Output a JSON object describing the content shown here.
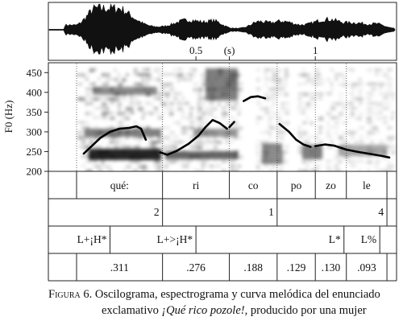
{
  "figure": {
    "oscillogram_ticks": [
      {
        "label": "0.5",
        "t": 0.5
      },
      {
        "label": "(s)",
        "t": 0.64
      },
      {
        "label": "1",
        "t": 1.0
      }
    ],
    "y_axis_label": "F0 (Hz)",
    "chart_data": {
      "type": "line",
      "ylabel": "F0 (Hz)",
      "yticks": [
        200,
        250,
        300,
        350,
        400,
        450
      ],
      "ylim": [
        200,
        475
      ],
      "xlim": [
        0,
        1.32
      ],
      "pitch_segments": [
        [
          [
            0.03,
            245
          ],
          [
            0.06,
            262
          ],
          [
            0.1,
            285
          ],
          [
            0.14,
            300
          ],
          [
            0.18,
            308
          ],
          [
            0.22,
            310
          ],
          [
            0.25,
            314
          ],
          [
            0.27,
            308
          ],
          [
            0.29,
            280
          ]
        ],
        [
          [
            0.35,
            248
          ],
          [
            0.38,
            242
          ],
          [
            0.42,
            252
          ],
          [
            0.47,
            270
          ],
          [
            0.51,
            290
          ],
          [
            0.54,
            312
          ],
          [
            0.57,
            330
          ],
          [
            0.6,
            322
          ],
          [
            0.63,
            308
          ]
        ],
        [
          [
            0.64,
            312
          ],
          [
            0.66,
            325
          ]
        ],
        [
          [
            0.7,
            378
          ],
          [
            0.73,
            388
          ],
          [
            0.76,
            390
          ],
          [
            0.79,
            385
          ]
        ],
        [
          [
            0.85,
            320
          ],
          [
            0.89,
            300
          ],
          [
            0.92,
            280
          ],
          [
            0.95,
            268
          ],
          [
            0.98,
            262
          ]
        ],
        [
          [
            1.0,
            264
          ],
          [
            1.04,
            268
          ],
          [
            1.08,
            265
          ],
          [
            1.13,
            255
          ],
          [
            1.18,
            249
          ],
          [
            1.23,
            244
          ],
          [
            1.28,
            239
          ],
          [
            1.31,
            235
          ]
        ]
      ]
    },
    "tiers": {
      "syllables": [
        {
          "label": "qué:",
          "start": 0.0,
          "end": 0.36
        },
        {
          "label": "ri",
          "start": 0.36,
          "end": 0.64
        },
        {
          "label": "co",
          "start": 0.64,
          "end": 0.84
        },
        {
          "label": "po",
          "start": 0.84,
          "end": 1.0
        },
        {
          "label": "zo",
          "start": 1.0,
          "end": 1.13
        },
        {
          "label": "le",
          "start": 1.13,
          "end": 1.3
        }
      ],
      "break_indices": [
        {
          "label": "2",
          "t": 0.36
        },
        {
          "label": "1",
          "t": 0.84
        },
        {
          "label": "4",
          "t": 1.3
        }
      ],
      "tones": [
        {
          "label": "L+¡H*",
          "t": 0.14
        },
        {
          "label": "L+>¡H*",
          "t": 0.5
        },
        {
          "label": "L*",
          "t": 1.12
        },
        {
          "label": "L%",
          "t": 1.27
        }
      ],
      "durations": [
        {
          "label": ".311",
          "start": 0.0,
          "end": 0.36
        },
        {
          "label": ".276",
          "start": 0.36,
          "end": 0.64
        },
        {
          "label": ".188",
          "start": 0.64,
          "end": 0.84
        },
        {
          "label": ".129",
          "start": 0.84,
          "end": 1.0
        },
        {
          "label": ".130",
          "start": 1.0,
          "end": 1.13
        },
        {
          "label": ".093",
          "start": 1.13,
          "end": 1.3
        }
      ]
    }
  },
  "caption": {
    "lead": "Figura 6.",
    "text1": " Oscilograma, espectrograma y curva melódica del enunciado",
    "text2a": "exclamativo ",
    "title": "¡Qué rico pozole!,",
    "text2b": " producido por una mujer"
  }
}
